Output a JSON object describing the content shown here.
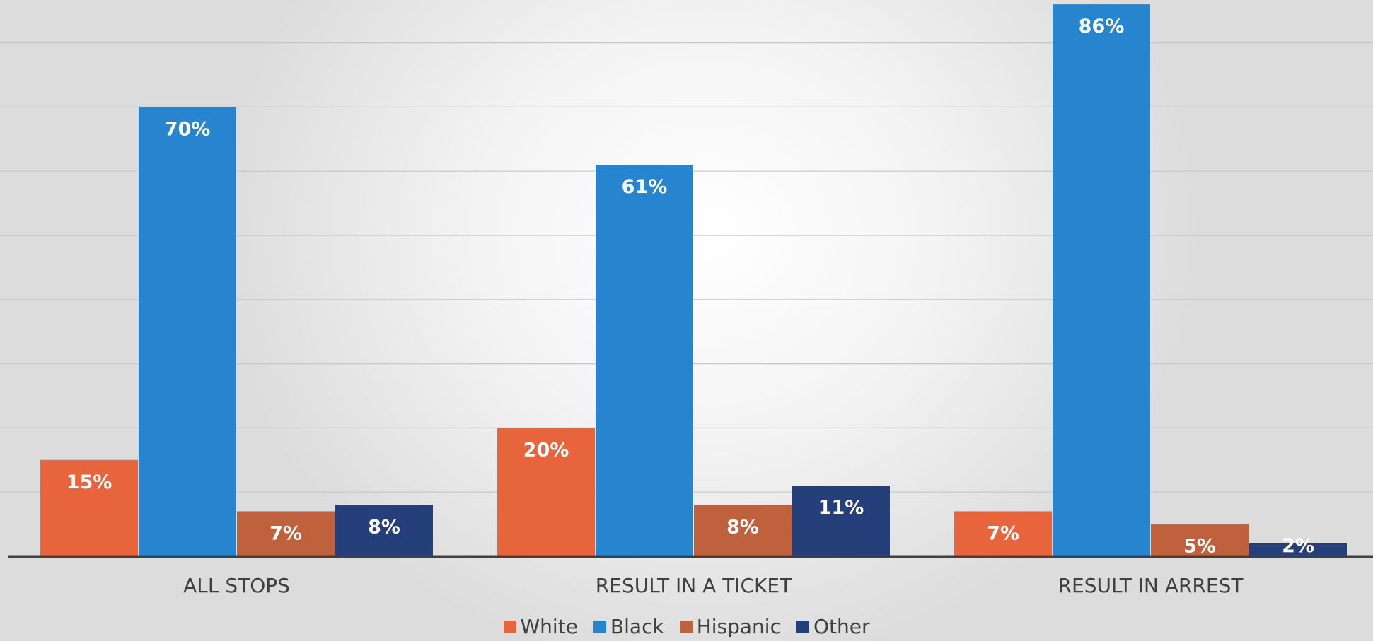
{
  "chart_data": {
    "type": "bar",
    "categories": [
      "ALL STOPS",
      "RESULT IN A TICKET",
      "RESULT IN ARREST"
    ],
    "series": [
      {
        "name": "White",
        "color": "#E8643C",
        "values": [
          15,
          20,
          7
        ],
        "labels": [
          "15%",
          "20%",
          "7%"
        ]
      },
      {
        "name": "Black",
        "color": "#2785CF",
        "values": [
          70,
          61,
          86
        ],
        "labels": [
          "70%",
          "61%",
          "86%"
        ]
      },
      {
        "name": "Hispanic",
        "color": "#C0613E",
        "values": [
          7,
          8,
          5
        ],
        "labels": [
          "7%",
          "8%",
          "5%"
        ]
      },
      {
        "name": "Other",
        "color": "#253F7A",
        "values": [
          8,
          11,
          2
        ],
        "labels": [
          "8%",
          "11%",
          "2%"
        ]
      }
    ],
    "ylim": [
      0,
      90
    ],
    "gridlines": true,
    "legend_position": "bottom"
  }
}
